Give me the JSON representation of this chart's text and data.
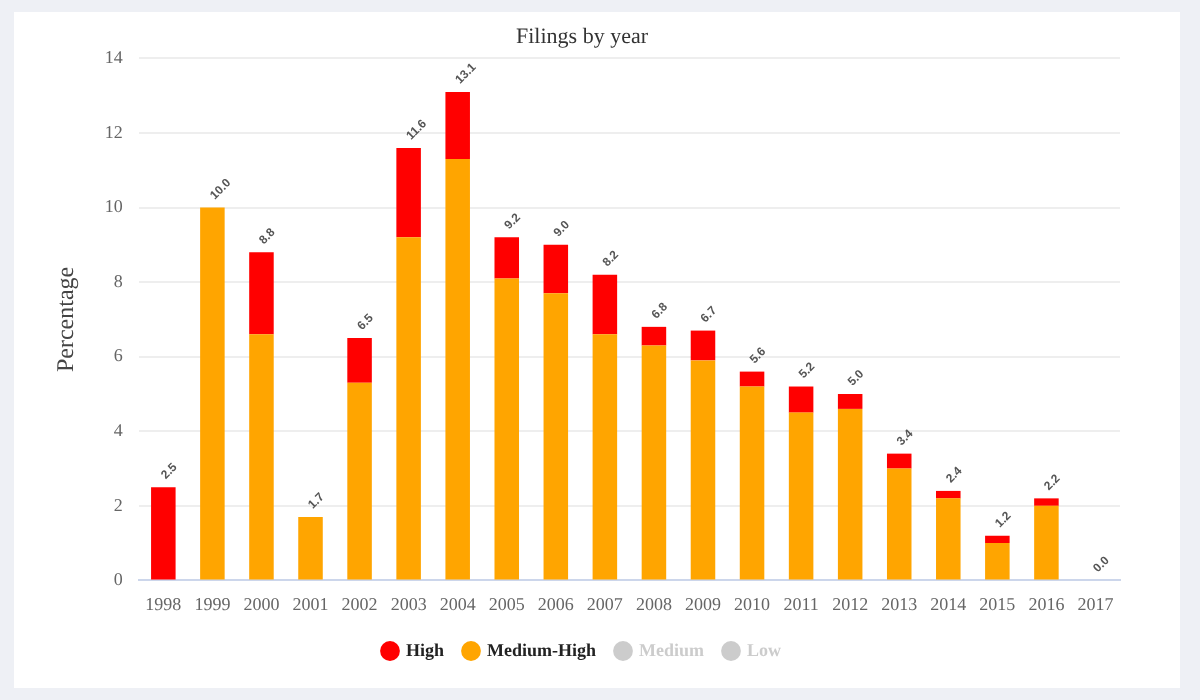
{
  "chart_data": {
    "type": "bar",
    "title": "Filings by year",
    "ylabel": "Percentage",
    "stacked": true,
    "categories": [
      "1998",
      "1999",
      "2000",
      "2001",
      "2002",
      "2003",
      "2004",
      "2005",
      "2006",
      "2007",
      "2008",
      "2009",
      "2010",
      "2011",
      "2012",
      "2013",
      "2014",
      "2015",
      "2016",
      "2017"
    ],
    "series": [
      {
        "name": "Medium-High",
        "color": "#ffa500",
        "values": [
          0,
          10.0,
          6.6,
          1.7,
          5.3,
          9.2,
          11.3,
          8.1,
          7.7,
          6.6,
          6.3,
          5.9,
          5.2,
          4.5,
          4.6,
          3.0,
          2.2,
          1.0,
          2.0,
          0
        ]
      },
      {
        "name": "High",
        "color": "#ff0000",
        "values": [
          2.5,
          0,
          2.2,
          0,
          1.2,
          2.4,
          1.8,
          1.1,
          1.3,
          1.6,
          0.5,
          0.8,
          0.4,
          0.7,
          0.4,
          0.4,
          0.2,
          0.2,
          0.2,
          0
        ]
      },
      {
        "name": "Medium",
        "color": "#cccccc",
        "values": [
          null,
          null,
          null,
          null,
          null,
          null,
          null,
          null,
          null,
          null,
          null,
          null,
          null,
          null,
          null,
          null,
          null,
          null,
          null,
          null
        ]
      },
      {
        "name": "Low",
        "color": "#cccccc",
        "values": [
          null,
          null,
          null,
          null,
          null,
          null,
          null,
          null,
          null,
          null,
          null,
          null,
          null,
          null,
          null,
          null,
          null,
          null,
          null,
          null
        ]
      }
    ],
    "totals": [
      "2.5",
      "10.0",
      "8.8",
      "1.7",
      "6.5",
      "11.6",
      "13.1",
      "9.2",
      "9.0",
      "8.2",
      "6.8",
      "6.7",
      "5.6",
      "5.2",
      "5.0",
      "3.4",
      "2.4",
      "1.2",
      "2.2",
      "0.0"
    ],
    "ylim": [
      0,
      14
    ],
    "yticks": [
      0,
      2,
      4,
      6,
      8,
      10,
      12,
      14
    ],
    "grid": "y",
    "legend": "bottom"
  }
}
